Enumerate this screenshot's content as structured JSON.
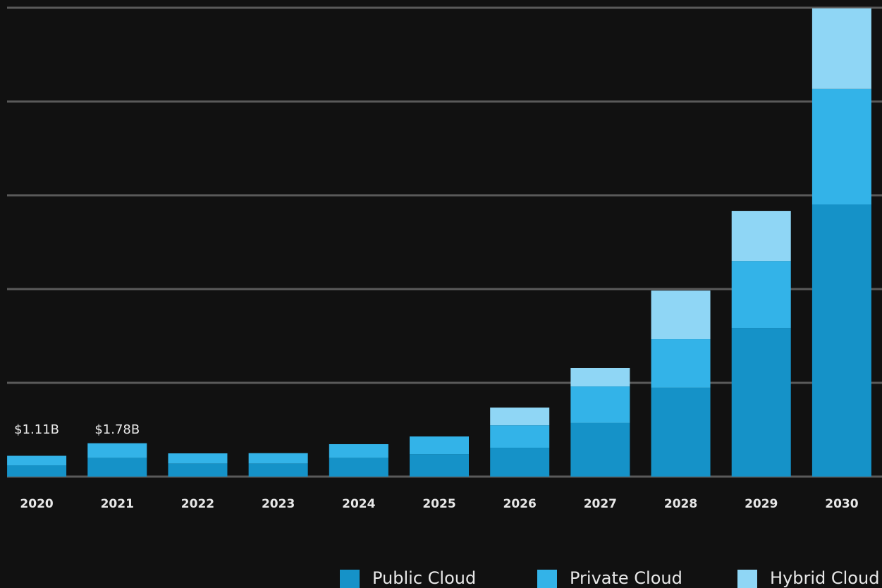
{
  "chart_data": {
    "type": "stacked_bar",
    "categories": [
      "2020",
      "2021",
      "2022",
      "2023",
      "2024",
      "2025",
      "2026",
      "2027",
      "2028",
      "2029",
      "2030"
    ],
    "series": [
      {
        "name": "Public Cloud",
        "color": "#1592c8",
        "values": [
          0.6,
          1.0,
          0.7,
          0.7,
          1.0,
          1.2,
          1.54,
          2.86,
          4.74,
          7.93,
          14.51
        ]
      },
      {
        "name": "Private Cloud",
        "color": "#33b3e8",
        "values": [
          0.51,
          0.78,
          0.54,
          0.55,
          0.73,
          0.94,
          1.2,
          1.95,
          2.59,
          3.57,
          6.17
        ]
      },
      {
        "name": "Hybrid Cloud",
        "color": "#8fd6f5",
        "values": [
          0,
          0,
          0,
          0,
          0,
          0,
          0.94,
          0.98,
          2.59,
          2.67,
          4.29
        ]
      }
    ],
    "annotations": [
      {
        "category": "2020",
        "value": 1.11,
        "label": "$1.11B"
      },
      {
        "category": "2021",
        "value": 1.78,
        "label": "$1.78B"
      }
    ],
    "ylim": [
      0,
      25
    ],
    "yticks": [
      0,
      5,
      10,
      15,
      20,
      25
    ],
    "grid": true,
    "legend": "bottom"
  }
}
